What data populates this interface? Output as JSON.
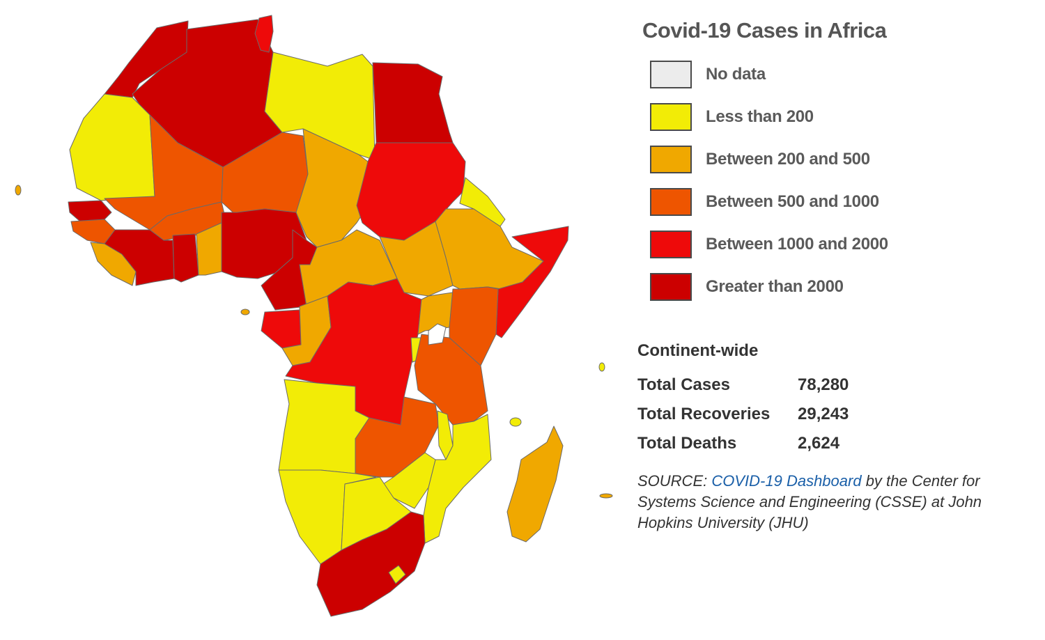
{
  "legend": {
    "title": "Covid-19 Cases in Africa",
    "items": [
      {
        "label": "No data",
        "color": "#ececec"
      },
      {
        "label": "Less than 200",
        "color": "#f2ec06"
      },
      {
        "label": "Between 200 and 500",
        "color": "#f0a800"
      },
      {
        "label": "Between 500 and 1000",
        "color": "#ee5500"
      },
      {
        "label": "Between 1000 and 2000",
        "color": "#ee0a0a"
      },
      {
        "label": "Greater than 2000",
        "color": "#cc0000"
      }
    ]
  },
  "stats": {
    "heading": "Continent-wide",
    "rows": [
      {
        "label": "Total Cases",
        "value": "78,280"
      },
      {
        "label": "Total Recoveries",
        "value": "29,243"
      },
      {
        "label": "Total Deaths",
        "value": "2,624"
      }
    ]
  },
  "source": {
    "prefix": "SOURCE: ",
    "link_text": "COVID-19 Dashboard",
    "suffix": " by the Center for Systems Science and Engineering (CSSE) at John Hopkins University (JHU)"
  }
}
